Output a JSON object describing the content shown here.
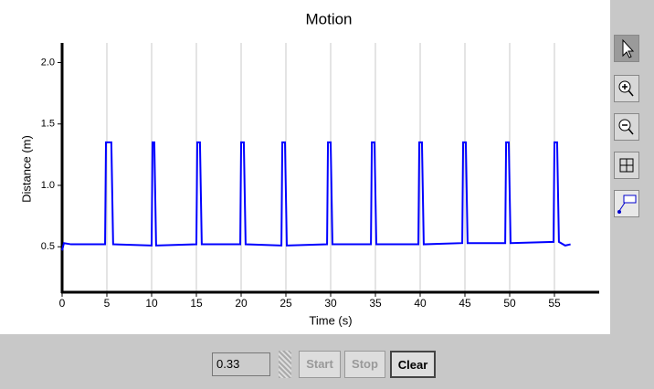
{
  "chart_data": {
    "type": "line",
    "title": "Motion",
    "x_label": "Time (s)",
    "y_label": "Distance (m)",
    "x": [
      0,
      0.2,
      1,
      4.8,
      4.9,
      5.5,
      5.7,
      10.0,
      10.1,
      10.3,
      10.5,
      15.0,
      15.1,
      15.4,
      15.6,
      19.9,
      20.0,
      20.3,
      20.5,
      24.5,
      24.6,
      24.9,
      25.1,
      29.6,
      29.7,
      30.0,
      30.2,
      34.5,
      34.6,
      34.9,
      35.1,
      39.8,
      39.9,
      40.2,
      40.4,
      44.7,
      44.8,
      45.1,
      45.3,
      49.5,
      49.6,
      49.9,
      50.1,
      54.9,
      55.0,
      55.3,
      55.5,
      56.2,
      56.8
    ],
    "series": [
      {
        "name": "Distance",
        "color": "#0000ff",
        "values": [
          0.47,
          0.53,
          0.52,
          0.52,
          1.35,
          1.35,
          0.52,
          0.51,
          1.35,
          1.35,
          0.51,
          0.52,
          1.35,
          1.35,
          0.52,
          0.52,
          1.35,
          1.35,
          0.52,
          0.51,
          1.35,
          1.35,
          0.51,
          0.52,
          1.35,
          1.35,
          0.52,
          0.52,
          1.35,
          1.35,
          0.52,
          0.52,
          1.35,
          1.35,
          0.52,
          0.53,
          1.35,
          1.35,
          0.53,
          0.53,
          1.35,
          1.35,
          0.53,
          0.54,
          1.35,
          1.35,
          0.54,
          0.51,
          0.52
        ]
      }
    ],
    "xlim": [
      0,
      60
    ],
    "ylim": [
      0.13,
      2.16
    ],
    "xticks": [
      0,
      5,
      10,
      15,
      20,
      25,
      30,
      35,
      40,
      45,
      50,
      55
    ],
    "yticks": [
      0.5,
      {
        "value": 1.0,
        "label": "1.0"
      },
      1.5,
      {
        "value": 2.0,
        "label": "2.0"
      }
    ],
    "grid": "x"
  },
  "controls": {
    "rate": "0.33",
    "start": "Start",
    "stop": "Stop",
    "clear": "Clear"
  }
}
